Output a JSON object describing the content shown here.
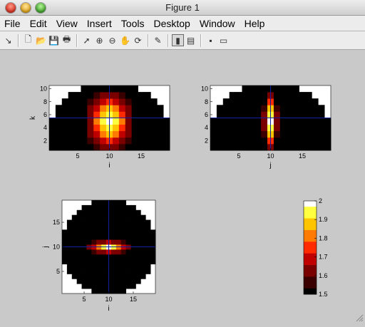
{
  "window": {
    "title": "Figure 1"
  },
  "menu": [
    "File",
    "Edit",
    "View",
    "Insert",
    "Tools",
    "Desktop",
    "Window",
    "Help"
  ],
  "toolbar": [
    {
      "name": "dock-arrow-icon",
      "glyph": "↘"
    },
    {
      "name": "new-figure-icon",
      "glyph": "🗋"
    },
    {
      "name": "open-file-icon",
      "glyph": "📂"
    },
    {
      "name": "save-icon",
      "glyph": "💾"
    },
    {
      "name": "print-icon",
      "glyph": "🖶"
    },
    {
      "name": "select-arrow-icon",
      "glyph": "➚"
    },
    {
      "name": "zoom-in-icon",
      "glyph": "⊕"
    },
    {
      "name": "zoom-out-icon",
      "glyph": "⊖"
    },
    {
      "name": "pan-hand-icon",
      "glyph": "✋"
    },
    {
      "name": "rotate-3d-icon",
      "glyph": "⟳"
    },
    {
      "name": "data-cursor-icon",
      "glyph": "✎"
    },
    {
      "name": "colorbar-icon",
      "glyph": "▮"
    },
    {
      "name": "legend-icon",
      "glyph": "▤"
    },
    {
      "name": "hide-plot-tools-icon",
      "glyph": "▪"
    },
    {
      "name": "show-plot-tools-icon",
      "glyph": "▭"
    }
  ],
  "colors": {
    "cmap": [
      "#000000",
      "#3a0000",
      "#7a0000",
      "#c00000",
      "#ff2a00",
      "#ff7a00",
      "#ffc400",
      "#ffff40",
      "#ffffff"
    ],
    "crosshair": "#1020a0",
    "outside": "#ffffff"
  },
  "chart_data": [
    {
      "type": "heatmap",
      "title": "",
      "xlabel": "i",
      "ylabel": "k",
      "xticks": [
        "5",
        "10",
        "15"
      ],
      "yticks": [
        "2",
        "4",
        "6",
        "8",
        "10"
      ],
      "xlim": [
        0.5,
        19.5
      ],
      "ylim": [
        0.5,
        10.5
      ],
      "crosshair": {
        "x": 10,
        "y": 5.5
      },
      "shape": "half-circle",
      "colormap": "hot",
      "peak_center": [
        10,
        5
      ],
      "peak_spread": [
        2.6,
        3.2
      ]
    },
    {
      "type": "heatmap",
      "title": "",
      "xlabel": "j",
      "ylabel": "",
      "xticks": [
        "5",
        "10",
        "15"
      ],
      "yticks": [
        "2",
        "4",
        "6",
        "8",
        "10"
      ],
      "xlim": [
        0.5,
        19.5
      ],
      "ylim": [
        0.5,
        10.5
      ],
      "crosshair": {
        "x": 10,
        "y": 5.5
      },
      "shape": "half-circle",
      "colormap": "hot",
      "peak_center": [
        10,
        5
      ],
      "peak_spread": [
        0.8,
        3.2
      ]
    },
    {
      "type": "heatmap",
      "title": "",
      "xlabel": "i",
      "ylabel": "j",
      "xticks": [
        "5",
        "10",
        "15"
      ],
      "yticks": [
        "5",
        "10",
        "15"
      ],
      "xlim": [
        0.5,
        19.5
      ],
      "ylim": [
        0.5,
        19.5
      ],
      "crosshair": {
        "x": 10,
        "y": 10
      },
      "shape": "circle",
      "colormap": "hot",
      "peak_center": [
        10,
        10
      ],
      "peak_spread": [
        3.0,
        0.9
      ]
    },
    {
      "type": "colorbar",
      "ticks": [
        "2",
        "1.9",
        "1.8",
        "1.7",
        "1.6",
        "1.5"
      ],
      "range": [
        1.5,
        2
      ]
    }
  ]
}
